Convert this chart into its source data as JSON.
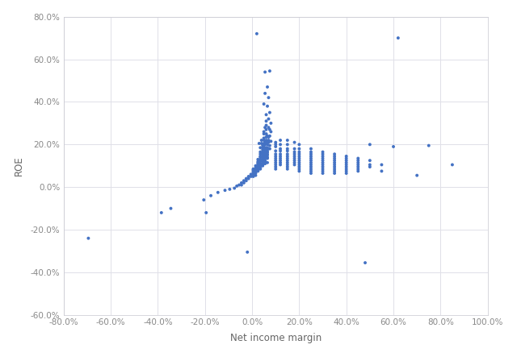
{
  "xlabel": "Net income margin",
  "ylabel": "ROE",
  "xlim": [
    -0.8,
    1.0
  ],
  "ylim": [
    -0.6,
    0.8
  ],
  "xticks": [
    -0.8,
    -0.6,
    -0.4,
    -0.2,
    0.0,
    0.2,
    0.4,
    0.6,
    0.8,
    1.0
  ],
  "yticks": [
    -0.6,
    -0.4,
    -0.2,
    0.0,
    0.2,
    0.4,
    0.6,
    0.8
  ],
  "dot_color": "#4472C4",
  "dot_size": 8,
  "background_color": "#ffffff",
  "grid_color": "#e0e0e8",
  "spine_color": "#c8c8d0",
  "tick_color": "#888888",
  "label_color": "#666666",
  "tick_fontsize": 7.5,
  "label_fontsize": 8.5,
  "points": [
    [
      0.02,
      0.72
    ],
    [
      0.055,
      0.54
    ],
    [
      0.075,
      0.545
    ],
    [
      0.065,
      0.47
    ],
    [
      0.055,
      0.44
    ],
    [
      0.07,
      0.42
    ],
    [
      0.05,
      0.39
    ],
    [
      0.065,
      0.38
    ],
    [
      0.075,
      0.35
    ],
    [
      0.06,
      0.34
    ],
    [
      0.07,
      0.32
    ],
    [
      0.06,
      0.31
    ],
    [
      0.08,
      0.3
    ],
    [
      0.06,
      0.29
    ],
    [
      0.07,
      0.28
    ],
    [
      0.055,
      0.28
    ],
    [
      0.06,
      0.27
    ],
    [
      0.075,
      0.27
    ],
    [
      0.08,
      0.26
    ],
    [
      0.05,
      0.26
    ],
    [
      0.06,
      0.25
    ],
    [
      0.05,
      0.25
    ],
    [
      0.065,
      0.24
    ],
    [
      0.075,
      0.24
    ],
    [
      0.07,
      0.235
    ],
    [
      0.06,
      0.235
    ],
    [
      0.05,
      0.23
    ],
    [
      0.04,
      0.22
    ],
    [
      0.07,
      0.22
    ],
    [
      0.06,
      0.22
    ],
    [
      0.05,
      0.22
    ],
    [
      0.08,
      0.215
    ],
    [
      0.065,
      0.215
    ],
    [
      0.055,
      0.215
    ],
    [
      0.06,
      0.21
    ],
    [
      0.07,
      0.21
    ],
    [
      0.05,
      0.205
    ],
    [
      0.04,
      0.205
    ],
    [
      0.06,
      0.205
    ],
    [
      0.03,
      0.205
    ],
    [
      0.055,
      0.2
    ],
    [
      0.065,
      0.2
    ],
    [
      0.075,
      0.195
    ],
    [
      0.045,
      0.195
    ],
    [
      0.05,
      0.19
    ],
    [
      0.06,
      0.185
    ],
    [
      0.05,
      0.185
    ],
    [
      0.065,
      0.185
    ],
    [
      0.035,
      0.185
    ],
    [
      0.045,
      0.185
    ],
    [
      0.075,
      0.18
    ],
    [
      0.065,
      0.175
    ],
    [
      0.055,
      0.175
    ],
    [
      0.045,
      0.175
    ],
    [
      0.055,
      0.17
    ],
    [
      0.065,
      0.165
    ],
    [
      0.055,
      0.165
    ],
    [
      0.045,
      0.165
    ],
    [
      0.035,
      0.165
    ],
    [
      0.065,
      0.165
    ],
    [
      0.055,
      0.16
    ],
    [
      0.045,
      0.16
    ],
    [
      0.055,
      0.155
    ],
    [
      0.065,
      0.155
    ],
    [
      0.035,
      0.155
    ],
    [
      0.045,
      0.155
    ],
    [
      0.055,
      0.15
    ],
    [
      0.065,
      0.15
    ],
    [
      0.045,
      0.15
    ],
    [
      0.055,
      0.145
    ],
    [
      0.035,
      0.145
    ],
    [
      0.065,
      0.14
    ],
    [
      0.055,
      0.14
    ],
    [
      0.045,
      0.14
    ],
    [
      0.035,
      0.14
    ],
    [
      0.055,
      0.14
    ],
    [
      0.045,
      0.135
    ],
    [
      0.055,
      0.135
    ],
    [
      0.065,
      0.135
    ],
    [
      0.035,
      0.13
    ],
    [
      0.045,
      0.13
    ],
    [
      0.025,
      0.13
    ],
    [
      0.055,
      0.125
    ],
    [
      0.045,
      0.125
    ],
    [
      0.035,
      0.125
    ],
    [
      0.025,
      0.12
    ],
    [
      0.055,
      0.12
    ],
    [
      0.045,
      0.12
    ],
    [
      0.035,
      0.12
    ],
    [
      0.055,
      0.115
    ],
    [
      0.065,
      0.115
    ],
    [
      0.025,
      0.115
    ],
    [
      0.035,
      0.11
    ],
    [
      0.045,
      0.11
    ],
    [
      0.055,
      0.11
    ],
    [
      0.025,
      0.11
    ],
    [
      0.035,
      0.105
    ],
    [
      0.045,
      0.105
    ],
    [
      0.025,
      0.105
    ],
    [
      0.035,
      0.1
    ],
    [
      0.045,
      0.1
    ],
    [
      0.015,
      0.1
    ],
    [
      0.025,
      0.1
    ],
    [
      0.035,
      0.09
    ],
    [
      0.025,
      0.09
    ],
    [
      0.015,
      0.09
    ],
    [
      0.025,
      0.085
    ],
    [
      0.035,
      0.085
    ],
    [
      0.015,
      0.085
    ],
    [
      0.005,
      0.085
    ],
    [
      0.025,
      0.08
    ],
    [
      0.015,
      0.08
    ],
    [
      0.005,
      0.08
    ],
    [
      0.015,
      0.075
    ],
    [
      0.025,
      0.075
    ],
    [
      0.005,
      0.075
    ],
    [
      0.015,
      0.07
    ],
    [
      0.005,
      0.07
    ],
    [
      0.015,
      0.065
    ],
    [
      0.005,
      0.065
    ],
    [
      0.005,
      0.06
    ],
    [
      -0.005,
      0.06
    ],
    [
      0.015,
      0.055
    ],
    [
      -0.015,
      0.05
    ],
    [
      0.005,
      0.05
    ],
    [
      -0.005,
      0.05
    ],
    [
      -0.025,
      0.04
    ],
    [
      -0.015,
      0.04
    ],
    [
      -0.035,
      0.03
    ],
    [
      -0.025,
      0.03
    ],
    [
      -0.045,
      0.02
    ],
    [
      -0.035,
      0.02
    ],
    [
      -0.055,
      0.01
    ],
    [
      -0.045,
      0.01
    ],
    [
      -0.065,
      0.005
    ],
    [
      -0.075,
      -0.005
    ],
    [
      -0.095,
      -0.01
    ],
    [
      -0.115,
      -0.015
    ],
    [
      -0.145,
      -0.025
    ],
    [
      -0.175,
      -0.04
    ],
    [
      -0.205,
      -0.06
    ],
    [
      -0.345,
      -0.1
    ],
    [
      -0.385,
      -0.12
    ],
    [
      -0.195,
      -0.12
    ],
    [
      -0.695,
      -0.24
    ],
    [
      0.1,
      0.21
    ],
    [
      0.12,
      0.22
    ],
    [
      0.15,
      0.22
    ],
    [
      0.18,
      0.21
    ],
    [
      0.1,
      0.2
    ],
    [
      0.12,
      0.2
    ],
    [
      0.15,
      0.2
    ],
    [
      0.2,
      0.2
    ],
    [
      0.1,
      0.19
    ],
    [
      0.12,
      0.18
    ],
    [
      0.15,
      0.18
    ],
    [
      0.18,
      0.18
    ],
    [
      0.2,
      0.18
    ],
    [
      0.25,
      0.18
    ],
    [
      0.1,
      0.17
    ],
    [
      0.12,
      0.17
    ],
    [
      0.15,
      0.17
    ],
    [
      0.18,
      0.165
    ],
    [
      0.2,
      0.165
    ],
    [
      0.25,
      0.165
    ],
    [
      0.3,
      0.165
    ],
    [
      0.1,
      0.155
    ],
    [
      0.12,
      0.155
    ],
    [
      0.15,
      0.155
    ],
    [
      0.18,
      0.155
    ],
    [
      0.2,
      0.155
    ],
    [
      0.25,
      0.155
    ],
    [
      0.3,
      0.155
    ],
    [
      0.35,
      0.155
    ],
    [
      0.1,
      0.145
    ],
    [
      0.12,
      0.145
    ],
    [
      0.15,
      0.145
    ],
    [
      0.18,
      0.145
    ],
    [
      0.2,
      0.145
    ],
    [
      0.25,
      0.145
    ],
    [
      0.3,
      0.145
    ],
    [
      0.35,
      0.145
    ],
    [
      0.4,
      0.145
    ],
    [
      0.1,
      0.135
    ],
    [
      0.12,
      0.135
    ],
    [
      0.15,
      0.135
    ],
    [
      0.18,
      0.135
    ],
    [
      0.2,
      0.135
    ],
    [
      0.25,
      0.135
    ],
    [
      0.3,
      0.135
    ],
    [
      0.35,
      0.135
    ],
    [
      0.4,
      0.135
    ],
    [
      0.45,
      0.135
    ],
    [
      0.1,
      0.125
    ],
    [
      0.12,
      0.125
    ],
    [
      0.15,
      0.125
    ],
    [
      0.18,
      0.125
    ],
    [
      0.2,
      0.125
    ],
    [
      0.25,
      0.125
    ],
    [
      0.3,
      0.125
    ],
    [
      0.35,
      0.125
    ],
    [
      0.4,
      0.125
    ],
    [
      0.45,
      0.125
    ],
    [
      0.5,
      0.125
    ],
    [
      0.1,
      0.115
    ],
    [
      0.12,
      0.115
    ],
    [
      0.15,
      0.115
    ],
    [
      0.18,
      0.115
    ],
    [
      0.2,
      0.115
    ],
    [
      0.25,
      0.115
    ],
    [
      0.3,
      0.115
    ],
    [
      0.35,
      0.115
    ],
    [
      0.4,
      0.115
    ],
    [
      0.45,
      0.115
    ],
    [
      0.1,
      0.105
    ],
    [
      0.12,
      0.105
    ],
    [
      0.15,
      0.105
    ],
    [
      0.18,
      0.105
    ],
    [
      0.2,
      0.105
    ],
    [
      0.25,
      0.105
    ],
    [
      0.3,
      0.105
    ],
    [
      0.35,
      0.105
    ],
    [
      0.4,
      0.105
    ],
    [
      0.45,
      0.105
    ],
    [
      0.5,
      0.105
    ],
    [
      0.55,
      0.105
    ],
    [
      0.85,
      0.105
    ],
    [
      0.1,
      0.095
    ],
    [
      0.15,
      0.095
    ],
    [
      0.2,
      0.095
    ],
    [
      0.25,
      0.095
    ],
    [
      0.3,
      0.095
    ],
    [
      0.35,
      0.095
    ],
    [
      0.4,
      0.095
    ],
    [
      0.45,
      0.095
    ],
    [
      0.5,
      0.095
    ],
    [
      0.1,
      0.085
    ],
    [
      0.15,
      0.085
    ],
    [
      0.2,
      0.085
    ],
    [
      0.25,
      0.085
    ],
    [
      0.3,
      0.085
    ],
    [
      0.35,
      0.085
    ],
    [
      0.4,
      0.085
    ],
    [
      0.45,
      0.085
    ],
    [
      0.55,
      0.075
    ],
    [
      0.2,
      0.075
    ],
    [
      0.25,
      0.075
    ],
    [
      0.3,
      0.075
    ],
    [
      0.35,
      0.075
    ],
    [
      0.4,
      0.075
    ],
    [
      0.45,
      0.075
    ],
    [
      0.25,
      0.065
    ],
    [
      0.3,
      0.065
    ],
    [
      0.35,
      0.065
    ],
    [
      0.4,
      0.065
    ],
    [
      0.6,
      0.19
    ],
    [
      0.5,
      0.2
    ],
    [
      0.7,
      0.055
    ],
    [
      0.48,
      -0.355
    ],
    [
      -0.02,
      -0.305
    ],
    [
      0.75,
      0.195
    ],
    [
      0.62,
      0.7
    ]
  ]
}
